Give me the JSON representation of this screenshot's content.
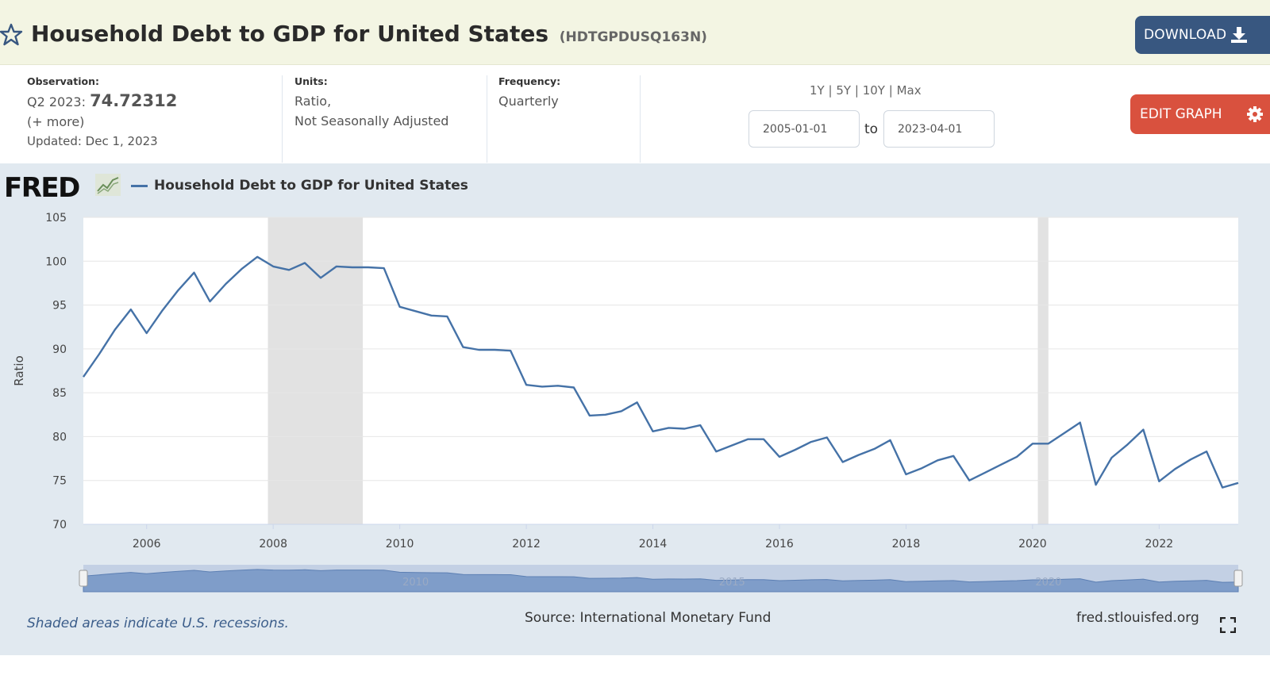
{
  "header": {
    "title": "Household Debt to GDP for United States",
    "series_id": "(HDTGPDUSQ163N)",
    "download_label": "DOWNLOAD",
    "favorite_icon": "star-outline-icon",
    "download_icon": "download-icon"
  },
  "meta": {
    "observation_label": "Observation:",
    "observation_period": "Q2 2023:",
    "observation_value": "74.72312",
    "more_link": "(+ more)",
    "updated": "Updated: Dec 1, 2023",
    "units_label": "Units:",
    "units_line1": "Ratio,",
    "units_line2": "Not Seasonally Adjusted",
    "frequency_label": "Frequency:",
    "frequency_value": "Quarterly"
  },
  "range_controls": {
    "presets": [
      "1Y",
      "5Y",
      "10Y",
      "Max"
    ],
    "separator": "|",
    "start_date": "2005-01-01",
    "end_date": "2023-04-01",
    "to_label": "to",
    "edit_label": "EDIT GRAPH",
    "edit_icon": "gear-icon"
  },
  "graph_panel": {
    "logo": "FRED",
    "logo_icon": "chart-trend-icon",
    "recession_note": "Shaded areas indicate U.S. recessions.",
    "source": "Source: International Monetary Fund",
    "site": "fred.stlouisfed.org",
    "fullscreen_icon": "fullscreen-icon",
    "navigator_labels": [
      "2010",
      "2015",
      "2020"
    ]
  },
  "colors": {
    "line": "#4572a7",
    "recession": "#e2e2e2",
    "download_btn": "#385780",
    "edit_btn": "#d9513e",
    "panel_bg": "#e1e9f0",
    "header_bg": "#f3f5e3"
  },
  "chart_data": {
    "type": "line",
    "title": "",
    "ylabel": "Ratio",
    "xlabel": "",
    "ylim": [
      70,
      105
    ],
    "yticks": [
      70,
      75,
      80,
      85,
      90,
      95,
      100,
      105
    ],
    "xticks": [
      "2006",
      "2008",
      "2010",
      "2012",
      "2014",
      "2016",
      "2018",
      "2020",
      "2022"
    ],
    "grid": true,
    "legend": "top-left",
    "recessions": [
      [
        "2007-12-01",
        "2009-06-01"
      ],
      [
        "2020-02-01",
        "2020-04-01"
      ]
    ],
    "series": [
      {
        "name": "Household Debt to GDP for United States",
        "x": [
          "2005-01-01",
          "2005-04-01",
          "2005-07-01",
          "2005-10-01",
          "2006-01-01",
          "2006-04-01",
          "2006-07-01",
          "2006-10-01",
          "2007-01-01",
          "2007-04-01",
          "2007-07-01",
          "2007-10-01",
          "2008-01-01",
          "2008-04-01",
          "2008-07-01",
          "2008-10-01",
          "2009-01-01",
          "2009-04-01",
          "2009-07-01",
          "2009-10-01",
          "2010-01-01",
          "2010-04-01",
          "2010-07-01",
          "2010-10-01",
          "2011-01-01",
          "2011-04-01",
          "2011-07-01",
          "2011-10-01",
          "2012-01-01",
          "2012-04-01",
          "2012-07-01",
          "2012-10-01",
          "2013-01-01",
          "2013-04-01",
          "2013-07-01",
          "2013-10-01",
          "2014-01-01",
          "2014-04-01",
          "2014-07-01",
          "2014-10-01",
          "2015-01-01",
          "2015-04-01",
          "2015-07-01",
          "2015-10-01",
          "2016-01-01",
          "2016-04-01",
          "2016-07-01",
          "2016-10-01",
          "2017-01-01",
          "2017-04-01",
          "2017-07-01",
          "2017-10-01",
          "2018-01-01",
          "2018-04-01",
          "2018-07-01",
          "2018-10-01",
          "2019-01-01",
          "2019-04-01",
          "2019-07-01",
          "2019-10-01",
          "2020-01-01",
          "2020-04-01",
          "2020-07-01",
          "2020-10-01",
          "2021-01-01",
          "2021-04-01",
          "2021-07-01",
          "2021-10-01",
          "2022-01-01",
          "2022-04-01",
          "2022-07-01",
          "2022-10-01",
          "2023-01-01",
          "2023-04-01"
        ],
        "values": [
          86.8,
          89.4,
          92.2,
          94.5,
          91.8,
          94.4,
          96.7,
          98.7,
          95.4,
          97.4,
          99.1,
          100.5,
          99.4,
          99.0,
          99.8,
          98.1,
          99.4,
          99.3,
          99.3,
          99.2,
          94.8,
          94.3,
          93.8,
          93.7,
          90.2,
          89.9,
          89.9,
          89.8,
          85.9,
          85.7,
          85.8,
          85.6,
          82.4,
          82.5,
          82.9,
          83.9,
          80.6,
          81.0,
          80.9,
          81.3,
          78.3,
          79.0,
          79.7,
          79.7,
          77.7,
          78.5,
          79.4,
          79.9,
          77.1,
          77.9,
          78.6,
          79.6,
          75.7,
          76.4,
          77.3,
          77.8,
          75.0,
          75.9,
          76.8,
          77.7,
          79.2,
          79.2,
          80.4,
          81.6,
          74.5,
          77.6,
          79.1,
          80.8,
          74.9,
          76.3,
          77.4,
          78.3,
          74.2,
          74.72
        ]
      }
    ]
  }
}
